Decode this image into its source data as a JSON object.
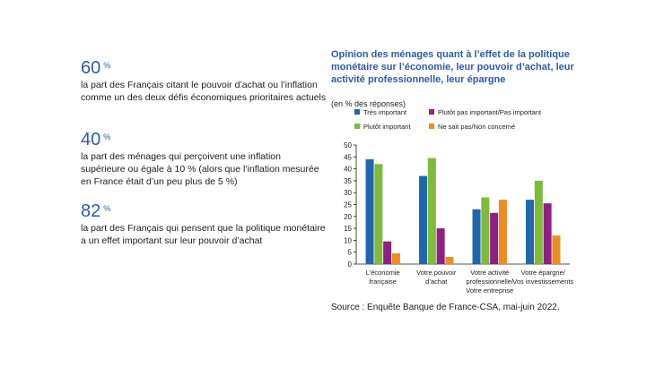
{
  "stats": [
    {
      "value": "60",
      "unit": "%",
      "text": "la part des Français citant le pouvoir d’achat ou l’inflation comme un des deux défis économiques prioritaires actuels"
    },
    {
      "value": "40",
      "unit": "%",
      "text": "la part des ménages qui perçoivent une inflation supérieure ou égale à 10 % (alors que l’inflation mesurée en France était d’un peu plus de 5 %)"
    },
    {
      "value": "82",
      "unit": "%",
      "text": "la part des Français qui pensent que la politique monétaire a un effet important sur leur pouvoir d’achat"
    }
  ],
  "source": "Source : Enquête Banque de France-CSA, mai-juin 2022.",
  "chart_data": {
    "type": "bar",
    "title": "Opinion des ménages quant à l’effet de la politique monétaire sur l’économie, leur pouvoir d’achat, leur activité professionnelle, leur épargne",
    "unit_label": "(en % des réponses)",
    "categories": [
      [
        "L’économie",
        "française"
      ],
      [
        "Votre pouvoir",
        "d’achat"
      ],
      [
        "Votre activité",
        "professionnelle/",
        "Votre entreprise"
      ],
      [
        "Votre épargne/",
        "Vos investissements"
      ]
    ],
    "series": [
      {
        "name": "Très important",
        "color": "#1f66ad",
        "values": [
          44,
          37,
          23,
          27
        ]
      },
      {
        "name": "Plutôt important",
        "color": "#7dbb38",
        "values": [
          42,
          44.5,
          28,
          35
        ]
      },
      {
        "name": "Plutôt pas important/Pas important",
        "color": "#8e1f84",
        "values": [
          9.5,
          15,
          21.5,
          25.5
        ]
      },
      {
        "name": "Ne sait pas/Non concerné",
        "color": "#f08c1e",
        "values": [
          4.5,
          3,
          27,
          12
        ]
      }
    ],
    "legend_order": [
      0,
      2,
      1,
      3
    ],
    "ylim": [
      0,
      50
    ],
    "yticks": [
      0,
      5,
      10,
      15,
      20,
      25,
      30,
      35,
      40,
      45,
      50
    ],
    "legend": "top",
    "grid": false
  }
}
